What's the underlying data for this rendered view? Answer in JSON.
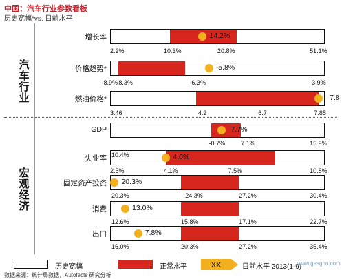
{
  "title": "中国：汽车行业参数看板",
  "subtitle": "历史宽幅*vs. 目前水平",
  "sections": {
    "auto": "汽车行业",
    "macro": "宏观经济"
  },
  "legend": {
    "historical": "历史宽幅",
    "normal": "正常水平",
    "current_marker": "XX",
    "current": "目前水平 2013(1-9)"
  },
  "source": "数据来源：统计局数据，Autofacts 研究分析",
  "logo": "www.gasgoo.com",
  "colors": {
    "normal": "#d7261e",
    "current": "#f2b01e",
    "title": "#c8232c"
  },
  "chart_data": {
    "type": "range-bar",
    "rows": [
      {
        "label": "增长率",
        "section": "auto",
        "current": "14.2%",
        "ticks": [
          "2.2%",
          "10.3%",
          "20.8%",
          "51.1%"
        ],
        "hist_min": 2.2,
        "normal_min": 10.3,
        "normal_max": 20.8,
        "hist_max": 51.1,
        "current_value": 14.2
      },
      {
        "label": "价格趋势*",
        "section": "auto",
        "current": "-5.8%",
        "ticks": [
          "-8.9%",
          "-8.3%",
          "-6.3%",
          "-3.9%"
        ],
        "hist_min": -8.9,
        "normal_min": -8.3,
        "normal_max": -6.3,
        "hist_max": -3.9,
        "current_value": -5.8
      },
      {
        "label": "燃油价格*",
        "section": "auto",
        "current": "7.8",
        "ticks": [
          "3.46",
          "4.2",
          "6.7",
          "7.85"
        ],
        "hist_min": 3.46,
        "normal_min": 4.2,
        "normal_max": 6.7,
        "hist_max": 7.85,
        "current_value": 7.8
      },
      {
        "label": "GDP",
        "section": "macro",
        "current": "7.7%",
        "ticks": [
          "-0.7%",
          "7.1%",
          "15.9%"
        ],
        "hist_min": -0.7,
        "normal_min": 7.1,
        "normal_max": 15.9,
        "hist_max": 15.9,
        "current_value": 7.7
      },
      {
        "label": "失业率",
        "section": "macro",
        "current": "4.0%",
        "ticks": [
          "10.4%",
          "2.5%",
          "4.1%",
          "7.5%",
          "10.8%"
        ],
        "hist_min": 2.5,
        "normal_min": 4.1,
        "normal_max": 7.5,
        "hist_max": 10.8,
        "current_value": 4.0
      },
      {
        "label": "固定资产投资",
        "section": "macro",
        "current": "20.3%",
        "ticks": [
          "20.3%",
          "24.3%",
          "27.2%",
          "30.4%"
        ],
        "hist_min": 20.3,
        "normal_min": 24.3,
        "normal_max": 27.2,
        "hist_max": 30.4,
        "current_value": 20.3
      },
      {
        "label": "消费",
        "section": "macro",
        "current": "13.0%",
        "ticks": [
          "12.6%",
          "15.8%",
          "17.1%",
          "22.7%"
        ],
        "hist_min": 12.6,
        "normal_min": 15.8,
        "normal_max": 17.1,
        "hist_max": 22.7,
        "current_value": 13.0
      },
      {
        "label": "出口",
        "section": "macro",
        "current": "7.8%",
        "ticks": [
          "16.0%",
          "20.3%",
          "27.2%",
          "35.4%"
        ],
        "hist_min": 16.0,
        "normal_min": 20.3,
        "normal_max": 27.2,
        "hist_max": 35.4,
        "current_value": 7.8
      }
    ]
  }
}
